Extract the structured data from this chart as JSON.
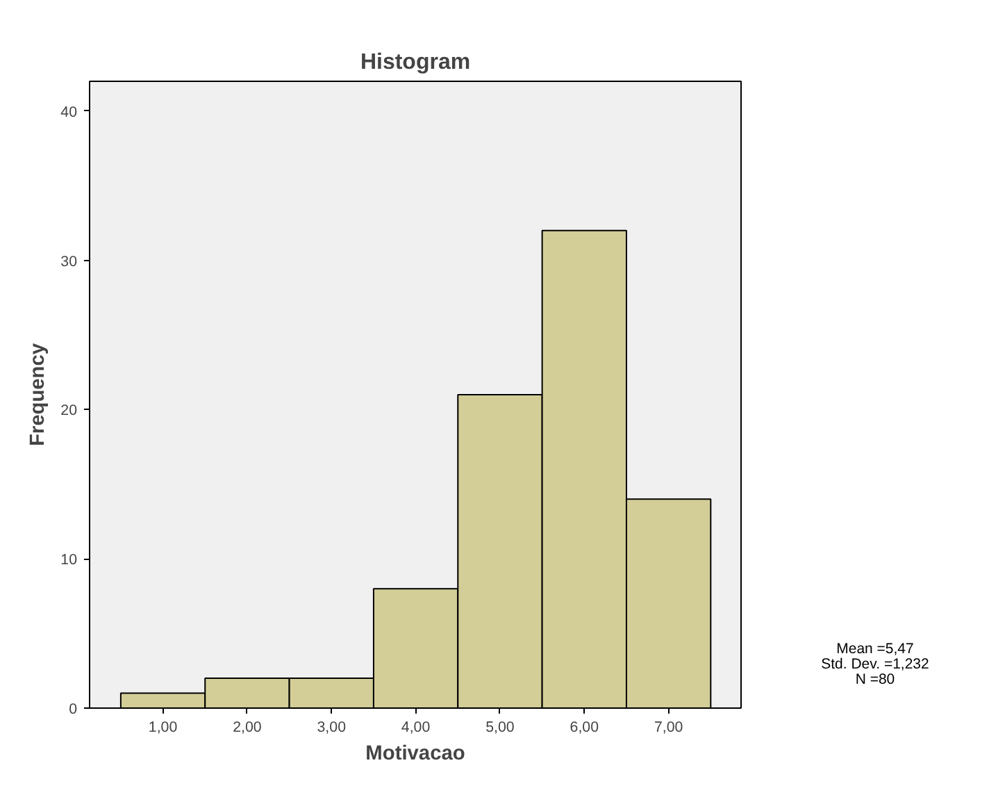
{
  "chart_data": {
    "type": "histogram",
    "title": "Histogram",
    "xlabel": "Motivacao",
    "ylabel": "Frequency",
    "bins": [
      0.5,
      1.5,
      2.5,
      3.5,
      4.5,
      5.5,
      6.5,
      7.5
    ],
    "values": [
      1,
      2,
      2,
      8,
      21,
      32,
      14
    ],
    "color": "#d3ce97",
    "xlim": [
      0.13,
      7.86
    ],
    "ylim": [
      0,
      42
    ],
    "xticks": [
      {
        "value": 1,
        "label": "1,00"
      },
      {
        "value": 2,
        "label": "2,00"
      },
      {
        "value": 3,
        "label": "3,00"
      },
      {
        "value": 4,
        "label": "4,00"
      },
      {
        "value": 5,
        "label": "5,00"
      },
      {
        "value": 6,
        "label": "6,00"
      },
      {
        "value": 7,
        "label": "7,00"
      }
    ],
    "yticks": [
      0,
      10,
      20,
      30,
      40
    ],
    "annotations": [
      "Mean =5,47",
      "Std. Dev. =1,232",
      "N =80"
    ],
    "grid": false
  }
}
